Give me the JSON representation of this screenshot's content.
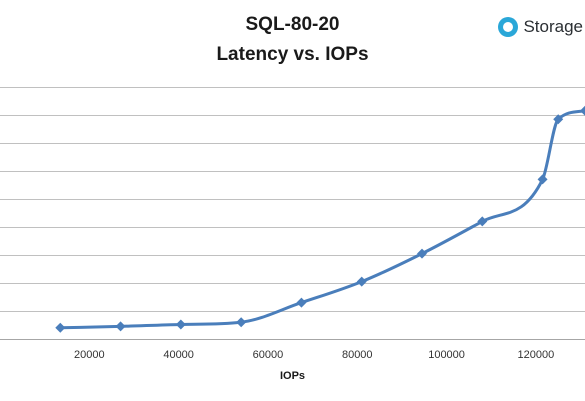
{
  "brand": {
    "logo_text": "Storage",
    "logo_color": "#2aa7d8"
  },
  "chart_data": {
    "type": "line",
    "title": "SQL-80-20",
    "subtitle": "Latency vs. IOPs",
    "xlabel": "IOPs",
    "ylabel": "",
    "xlim": [
      0,
      131000
    ],
    "ylim": [
      0,
      9
    ],
    "x_ticks": [
      20000,
      40000,
      60000,
      80000,
      100000,
      120000
    ],
    "x_tick_labels": [
      "20000",
      "40000",
      "60000",
      "80000",
      "100000",
      "120000"
    ],
    "grid": true,
    "legend": "none",
    "line_color": "#4a7ebb",
    "series": [
      {
        "x": [
          13500,
          27000,
          40500,
          54000,
          67500,
          81000,
          94500,
          108000,
          121500,
          125000,
          131000
        ],
        "values": [
          0.4,
          0.45,
          0.52,
          0.6,
          1.3,
          2.05,
          3.05,
          4.2,
          5.7,
          7.85,
          8.15
        ]
      }
    ]
  }
}
